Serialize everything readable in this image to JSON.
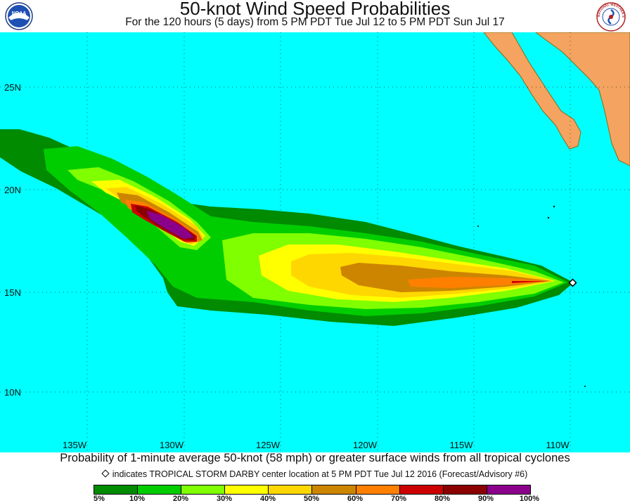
{
  "header": {
    "title": "50-knot Wind Speed Probabilities",
    "subtitle": "For the 120 hours (5 days) from 5 PM PDT Tue Jul 12 to 5 PM PDT Sun Jul 17",
    "left_logo": {
      "text": "NOAA",
      "icon": "noaa-logo"
    },
    "right_logo": {
      "text": "NATIONAL WEATHER SERVICE",
      "icon": "nws-logo"
    }
  },
  "map": {
    "ocean_color": "#00ffff",
    "land_color": "#f4a460",
    "lat_labels": [
      "25N",
      "20N",
      "15N",
      "10N"
    ],
    "lon_labels": [
      "135W",
      "130W",
      "125W",
      "120W",
      "115W",
      "110W"
    ],
    "storm_marker": {
      "name": "TROPICAL STORM DARBY",
      "icon": "diamond-marker"
    }
  },
  "caption": "Probability of 1-minute average 50-knot (58 mph) or greater surface winds from all tropical cyclones",
  "note": "indicates TROPICAL STORM DARBY center location at 5 PM PDT Tue Jul 12 2016 (Forecast/Advisory #6)",
  "legend": {
    "colors": [
      "#008b00",
      "#00cd00",
      "#7fff00",
      "#ffff00",
      "#ffd700",
      "#cd8500",
      "#ff7f00",
      "#cd0000",
      "#8b0000",
      "#8b008b"
    ],
    "labels": [
      "5%",
      "10%",
      "20%",
      "30%",
      "40%",
      "50%",
      "60%",
      "70%",
      "80%",
      "90%",
      "100%"
    ]
  }
}
